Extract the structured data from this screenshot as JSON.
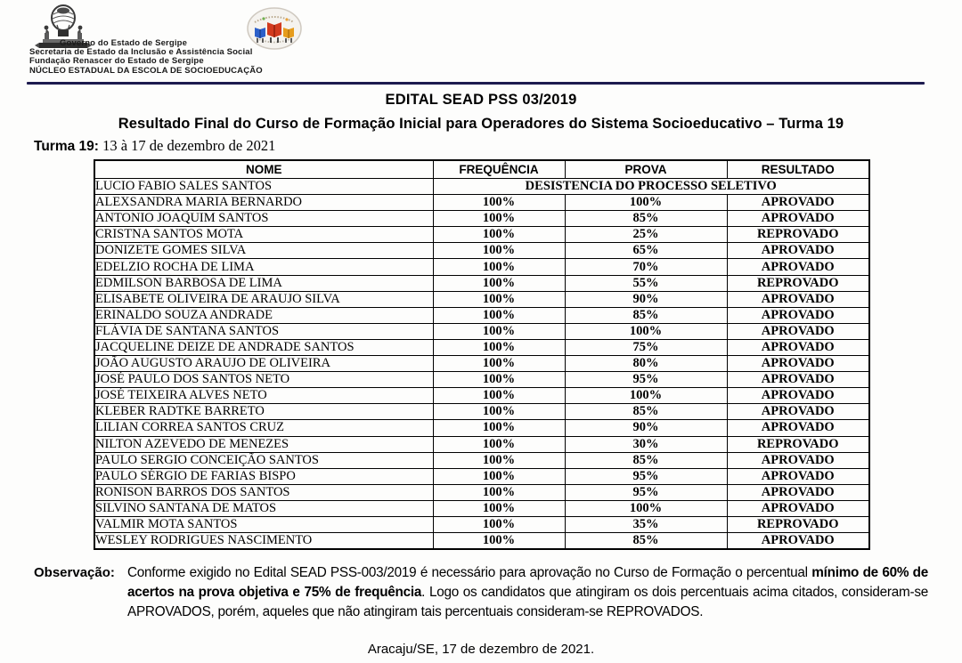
{
  "header": {
    "org_lines": [
      "Governo do Estado de Sergipe",
      "Secretaria de Estado da Inclusão e Assistência Social",
      "Fundação Renascer do Estado de Sergipe",
      "NÚCLEO ESTADUAL DA ESCOLA DE SOCIOEDUCAÇÃO"
    ],
    "left_logo": "sergipe-coat-of-arms",
    "right_logo": "escola-de-socioeducacao-emblem",
    "rule_color": "#1d1b4f"
  },
  "title": {
    "line1": "EDITAL SEAD PSS 03/2019",
    "line2": "Resultado Final do Curso de Formação Inicial para Operadores do Sistema Socioeducativo – Turma 19"
  },
  "turma": {
    "label": "Turma 19:",
    "dates": " 13 à 17 de dezembro de 2021"
  },
  "table": {
    "columns": [
      "NOME",
      "FREQUÊNCIA",
      "PROVA",
      "RESULTADO"
    ],
    "rows": [
      {
        "nome": "LUCIO FABIO SALES SANTOS",
        "span": "DESISTENCIA DO PROCESSO SELETIVO"
      },
      {
        "nome": "ALEXSANDRA MARIA BERNARDO",
        "frequencia": "100%",
        "prova": "100%",
        "resultado": "APROVADO"
      },
      {
        "nome": "ANTONIO JOAQUIM SANTOS",
        "frequencia": "100%",
        "prova": "85%",
        "resultado": "APROVADO"
      },
      {
        "nome": "CRISTNA SANTOS MOTA",
        "frequencia": "100%",
        "prova": "25%",
        "resultado": "REPROVADO"
      },
      {
        "nome": "DONIZETE GOMES SILVA",
        "frequencia": "100%",
        "prova": "65%",
        "resultado": "APROVADO"
      },
      {
        "nome": "EDELZIO ROCHA DE LIMA",
        "frequencia": "100%",
        "prova": "70%",
        "resultado": "APROVADO"
      },
      {
        "nome": "EDMILSON BARBOSA DE LIMA",
        "frequencia": "100%",
        "prova": "55%",
        "resultado": "REPROVADO"
      },
      {
        "nome": "ELISABETE OLIVEIRA DE ARAUJO SILVA",
        "frequencia": "100%",
        "prova": "90%",
        "resultado": "APROVADO"
      },
      {
        "nome": "ERINALDO SOUZA ANDRADE",
        "frequencia": "100%",
        "prova": "85%",
        "resultado": "APROVADO"
      },
      {
        "nome": "FLÁVIA DE SANTANA SANTOS",
        "frequencia": "100%",
        "prova": "100%",
        "resultado": "APROVADO"
      },
      {
        "nome": "JACQUELINE DEIZE DE ANDRADE SANTOS",
        "frequencia": "100%",
        "prova": "75%",
        "resultado": "APROVADO"
      },
      {
        "nome": "JOÃO AUGUSTO ARAUJO DE OLIVEIRA",
        "frequencia": "100%",
        "prova": "80%",
        "resultado": "APROVADO"
      },
      {
        "nome": "JOSÉ PAULO DOS SANTOS NETO",
        "frequencia": "100%",
        "prova": "95%",
        "resultado": "APROVADO"
      },
      {
        "nome": "JOSÉ TEIXEIRA ALVES NETO",
        "frequencia": "100%",
        "prova": "100%",
        "resultado": "APROVADO"
      },
      {
        "nome": "KLEBER RADTKE BARRETO",
        "frequencia": "100%",
        "prova": "85%",
        "resultado": "APROVADO"
      },
      {
        "nome": "LILIAN CORREA SANTOS CRUZ",
        "frequencia": "100%",
        "prova": "90%",
        "resultado": "APROVADO"
      },
      {
        "nome": "NILTON AZEVEDO DE MENEZES",
        "frequencia": "100%",
        "prova": "30%",
        "resultado": "REPROVADO"
      },
      {
        "nome": "PAULO SERGIO CONCEIÇÃO SANTOS",
        "frequencia": "100%",
        "prova": "85%",
        "resultado": "APROVADO"
      },
      {
        "nome": "PAULO SÉRGIO DE FARIAS BISPO",
        "frequencia": "100%",
        "prova": "95%",
        "resultado": "APROVADO"
      },
      {
        "nome": "RONISON BARROS DOS SANTOS",
        "frequencia": "100%",
        "prova": "95%",
        "resultado": "APROVADO"
      },
      {
        "nome": "SILVINO SANTANA DE MATOS",
        "frequencia": "100%",
        "prova": "100%",
        "resultado": "APROVADO"
      },
      {
        "nome": "VALMIR MOTA SANTOS",
        "frequencia": "100%",
        "prova": "35%",
        "resultado": "REPROVADO"
      },
      {
        "nome": "WESLEY RODRIGUES NASCIMENTO",
        "frequencia": "100%",
        "prova": "85%",
        "resultado": "APROVADO"
      }
    ]
  },
  "observacao": {
    "label": "Observação:",
    "text_regular_1": "Conforme exigido no Edital SEAD PSS-003/2019 é necessário para aprovação no Curso de Formação o percentual ",
    "text_bold": "mínimo de 60% de acertos na prova objetiva e 75% de frequência",
    "text_regular_2": ". Logo os candidatos que atingiram os dois percentuais acima citados, consideram-se APROVADOS, porém, aqueles que não atingiram tais percentuais consideram-se REPROVADOS."
  },
  "footer": {
    "date_line": "Aracaju/SE, 17 de dezembro de 2021."
  }
}
